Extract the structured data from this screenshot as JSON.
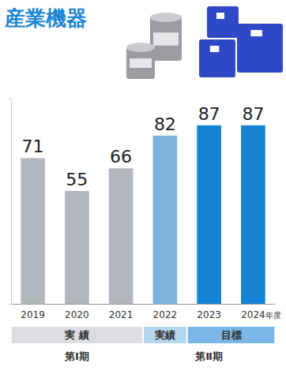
{
  "chart_data": {
    "type": "bar",
    "title": "産業機器",
    "categories": [
      "2019",
      "2020",
      "2021",
      "2022",
      "2023",
      "2024年度"
    ],
    "values": [
      71,
      55,
      66,
      82,
      87,
      87
    ],
    "colors": [
      "#b3b6bd",
      "#b3b6bd",
      "#b3b6bd",
      "#7eb3dd",
      "#1682d4",
      "#1682d4"
    ],
    "ylim": [
      0,
      100
    ],
    "yticks": [
      0
    ],
    "tick_labels": "x",
    "data_labels": true,
    "grid": false,
    "status_bands": [
      {
        "label": "実 績",
        "from": "2019",
        "to": "2021",
        "color": "#dcdde0"
      },
      {
        "label": "実績",
        "from": "2022",
        "to": "2022",
        "color": "#b5d6ef"
      },
      {
        "label": "目標",
        "from": "2023",
        "to": "2024年度",
        "color": "#7ab7e6"
      }
    ],
    "periods": [
      {
        "label": "第Ⅰ期",
        "from": "2019",
        "to": "2021"
      },
      {
        "label": "第Ⅱ期",
        "from": "2022",
        "to": "2024年度"
      }
    ]
  }
}
